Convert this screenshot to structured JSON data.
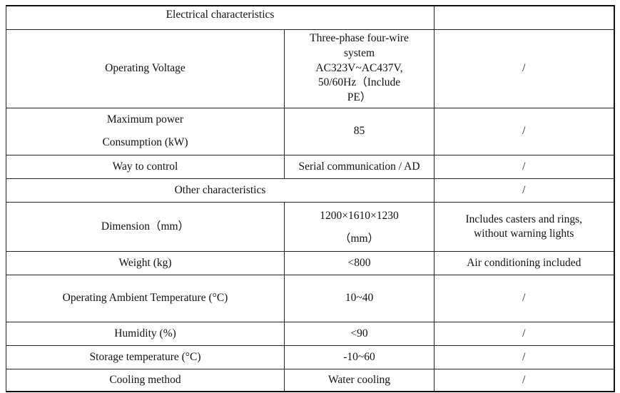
{
  "table": {
    "rows": [
      {
        "key": "electrical-characteristics",
        "type": "section",
        "label": "Electrical characteristics",
        "note": ""
      },
      {
        "key": "operating-voltage",
        "label": "Operating Voltage",
        "value_lines": [
          "Three-phase four-wire",
          "system",
          "AC323V~AC437V,",
          "50/60Hz（Include",
          "PE）"
        ],
        "note": "/"
      },
      {
        "key": "max-power",
        "label_lines": [
          "Maximum power",
          "Consumption (kW)"
        ],
        "value": "85",
        "note": "/"
      },
      {
        "key": "way-to-control",
        "label": "Way to control",
        "value": "Serial communication / AD",
        "note": "/"
      },
      {
        "key": "other-characteristics",
        "type": "section",
        "label": "Other characteristics",
        "note": "/"
      },
      {
        "key": "dimension",
        "label": "Dimension（mm）",
        "value_lines": [
          "1200×1610×1230",
          "（mm）"
        ],
        "note_lines": [
          "Includes casters and rings,",
          "without warning lights"
        ]
      },
      {
        "key": "weight",
        "label": "Weight (kg)",
        "value": "<800",
        "note": "Air conditioning included"
      },
      {
        "key": "operating-ambient-temperature",
        "label": "Operating Ambient Temperature (°C)",
        "value": "10~40",
        "note": "/"
      },
      {
        "key": "humidity",
        "label": "Humidity (%)",
        "value": "<90",
        "note": "/"
      },
      {
        "key": "storage-temperature",
        "label": "Storage temperature (°C)",
        "value": "-10~60",
        "note": "/"
      },
      {
        "key": "cooling-method",
        "label": "Cooling method",
        "value": "Water cooling",
        "note": "/"
      }
    ]
  }
}
